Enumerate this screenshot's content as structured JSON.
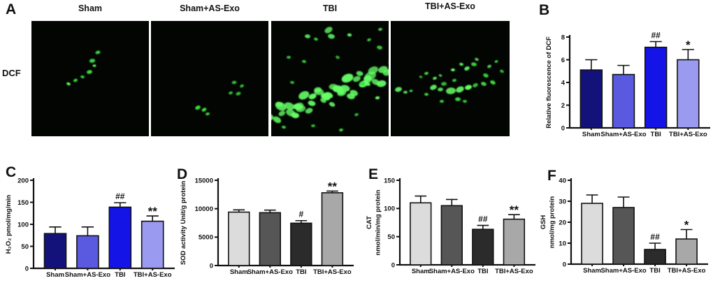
{
  "figure": {
    "panel_a": {
      "letter": "A",
      "row_label": "DCF",
      "image_titles": [
        "Sham",
        "Sham+AS-Exo",
        "TBI",
        "TBI+AS-Exo"
      ],
      "densities": [
        "sparse",
        "sparse",
        "dense-diagonal-band",
        "moderate-scatter"
      ],
      "fluorescence_color": "#3fe03f",
      "fluorescence_bright": "#66ff66",
      "image_background": "#020502"
    }
  },
  "chart_data": [
    {
      "id": "B",
      "letter": "B",
      "type": "bar",
      "ylabel_lines": [
        "Relative fluorescence of DCF"
      ],
      "categories": [
        "Sham",
        "Sham+AS-Exo",
        "TBI",
        "TBI+AS-Exo"
      ],
      "values": [
        5.1,
        4.7,
        7.1,
        6.0
      ],
      "errors": [
        0.9,
        0.8,
        0.5,
        0.9
      ],
      "significance": [
        "",
        "",
        "##",
        "*"
      ],
      "yticks": [
        0,
        2,
        4,
        6,
        8
      ],
      "ylim": [
        0,
        8
      ],
      "bar_colors": [
        "#12127a",
        "#5a5ae0",
        "#1414e6",
        "#9a9af0"
      ]
    },
    {
      "id": "C",
      "letter": "C",
      "type": "bar",
      "ylabel_lines": [
        "H₂O₂ pmol/mg/min"
      ],
      "categories": [
        "Sham",
        "Sham+AS-Exo",
        "TBI",
        "TBI+AS-Exo"
      ],
      "values": [
        79,
        74,
        139,
        107
      ],
      "errors": [
        15,
        20,
        10,
        12
      ],
      "significance": [
        "",
        "",
        "##",
        "**"
      ],
      "yticks": [
        0,
        50,
        100,
        150,
        200
      ],
      "ylim": [
        0,
        200
      ],
      "bar_colors": [
        "#12127a",
        "#5a5ae0",
        "#1414e6",
        "#9a9af0"
      ]
    },
    {
      "id": "D",
      "letter": "D",
      "type": "bar",
      "ylabel_lines": [
        "SOD activity Unit/g protein"
      ],
      "categories": [
        "Sham",
        "Sham+AS-Exo",
        "TBI",
        "TBI+AS-Exo"
      ],
      "values": [
        9400,
        9300,
        7450,
        12800
      ],
      "errors": [
        400,
        450,
        450,
        300
      ],
      "significance": [
        "",
        "",
        "#",
        "**"
      ],
      "yticks": [
        0,
        5000,
        10000,
        15000
      ],
      "ylim": [
        0,
        15000
      ],
      "bar_colors": [
        "#dcdcdc",
        "#565656",
        "#2b2b2b",
        "#a8a8a8"
      ]
    },
    {
      "id": "E",
      "letter": "E",
      "type": "bar",
      "ylabel_lines": [
        "CAT",
        "nmol/min/mg protein"
      ],
      "categories": [
        "Sham",
        "Sham+AS-Exo",
        "TBI",
        "TBI+AS-Exo"
      ],
      "values": [
        110,
        105,
        63,
        81
      ],
      "errors": [
        12,
        11,
        7,
        8
      ],
      "significance": [
        "",
        "",
        "##",
        "**"
      ],
      "yticks": [
        0,
        50,
        100,
        150
      ],
      "ylim": [
        0,
        150
      ],
      "bar_colors": [
        "#dcdcdc",
        "#565656",
        "#2b2b2b",
        "#a8a8a8"
      ]
    },
    {
      "id": "F",
      "letter": "F",
      "type": "bar",
      "ylabel_lines": [
        "GSH",
        "nmol/mg protein"
      ],
      "categories": [
        "Sham",
        "Sham+AS-Exo",
        "TBI",
        "TBI+AS-Exo"
      ],
      "values": [
        29,
        27,
        7,
        12
      ],
      "errors": [
        4,
        5,
        3,
        4.5
      ],
      "significance": [
        "",
        "",
        "##",
        "*"
      ],
      "yticks": [
        0,
        10,
        20,
        30,
        40
      ],
      "ylim": [
        0,
        40
      ],
      "bar_colors": [
        "#dcdcdc",
        "#565656",
        "#2b2b2b",
        "#a8a8a8"
      ]
    }
  ]
}
